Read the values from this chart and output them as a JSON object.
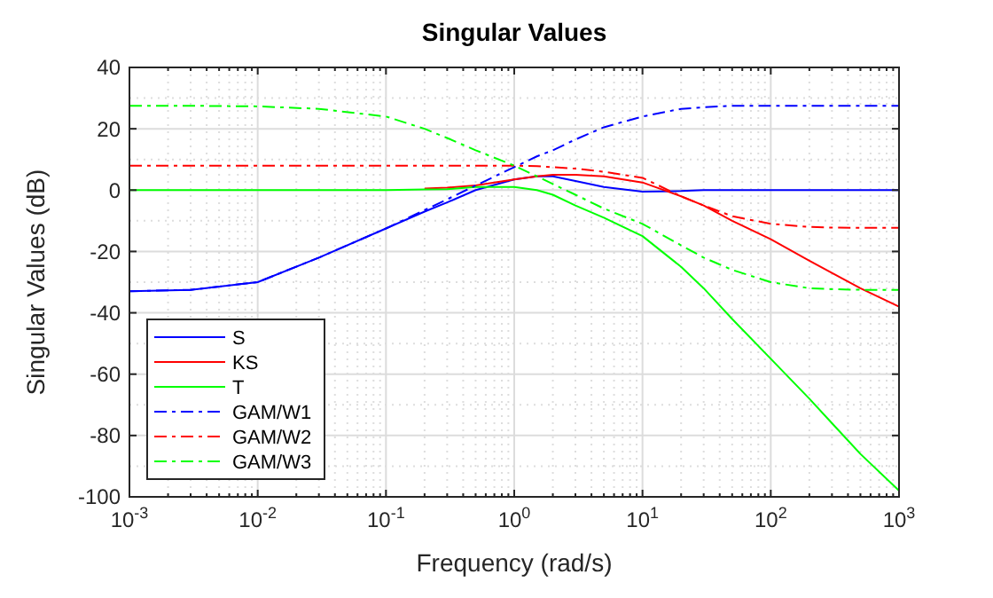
{
  "chart_data": {
    "type": "line",
    "title": "Singular Values",
    "xlabel": "Frequency (rad/s)",
    "ylabel": "Singular Values (dB)",
    "log": "x",
    "grid": true,
    "legend": "bottom left",
    "xlim": [
      0.001,
      1000
    ],
    "xticks": [
      {
        "value": 0.001,
        "label": "10$^{-3}$"
      },
      {
        "value": 0.01,
        "label": "10$^{-2}$"
      },
      {
        "value": 0.1,
        "label": "10$^{-1}$"
      },
      {
        "value": 1,
        "label": "10$^{0}$"
      },
      {
        "value": 10,
        "label": "10$^{1}$"
      },
      {
        "value": 100,
        "label": "10$^{2}$"
      },
      {
        "value": 1000,
        "label": "10$^{3}$"
      }
    ],
    "ylim": [
      -100,
      40
    ],
    "yticks": [
      -100,
      -80,
      -60,
      -40,
      -20,
      0,
      20,
      40
    ],
    "x": [
      0.001,
      0.003,
      0.01,
      0.03,
      0.1,
      0.2,
      0.3,
      0.5,
      1,
      1.5,
      2,
      3,
      5,
      10,
      20,
      30,
      50,
      100,
      200,
      300,
      500,
      1000
    ],
    "series": [
      {
        "name": "S",
        "color": "#0000ff",
        "line_style": "solid",
        "values": [
          -33,
          -32.5,
          -30,
          -22,
          -12.5,
          -7,
          -4,
          0,
          3.5,
          4.5,
          4.5,
          3,
          1,
          -0.5,
          -0.3,
          0,
          0,
          0,
          0,
          0,
          0,
          0
        ]
      },
      {
        "name": "KS",
        "color": "#ff0000",
        "line_style": "solid",
        "values": [
          null,
          null,
          null,
          null,
          null,
          0.5,
          0.8,
          1.5,
          3.5,
          4.5,
          5,
          5,
          4.5,
          2.5,
          -2,
          -5,
          -10,
          -16,
          -23,
          -27,
          -32,
          -38
        ]
      },
      {
        "name": "T",
        "color": "#00ff00",
        "line_style": "solid",
        "values": [
          0,
          0,
          0,
          0,
          0,
          0.2,
          0.3,
          1,
          1,
          0,
          -1.5,
          -5,
          -9,
          -15,
          -25,
          -32,
          -42,
          -55,
          -68,
          -76,
          -86,
          -98
        ]
      },
      {
        "name": "GAM/W1",
        "color": "#0000ff",
        "line_style": "dashdot",
        "values": [
          -33,
          -32.5,
          -30,
          -22,
          -12.5,
          -6.5,
          -3,
          1.5,
          7.5,
          11,
          13,
          16.5,
          20.5,
          24,
          26.5,
          27,
          27.5,
          27.5,
          27.5,
          27.5,
          27.5,
          27.5
        ]
      },
      {
        "name": "GAM/W2",
        "color": "#ff0000",
        "line_style": "dashdot",
        "values": [
          8,
          8,
          8,
          8,
          8,
          8,
          8,
          8,
          8,
          7.8,
          7.5,
          7,
          6,
          4,
          -2,
          -5,
          -8.5,
          -11,
          -12,
          -12.2,
          -12.3,
          -12.3
        ]
      },
      {
        "name": "GAM/W3",
        "color": "#00ff00",
        "line_style": "dashdot",
        "values": [
          27.5,
          27.5,
          27.3,
          26.5,
          24,
          20,
          17,
          13,
          8,
          4.5,
          2,
          -1.5,
          -6,
          -11,
          -18,
          -22,
          -26,
          -30,
          -32,
          -32.3,
          -32.5,
          -32.5
        ]
      }
    ]
  }
}
